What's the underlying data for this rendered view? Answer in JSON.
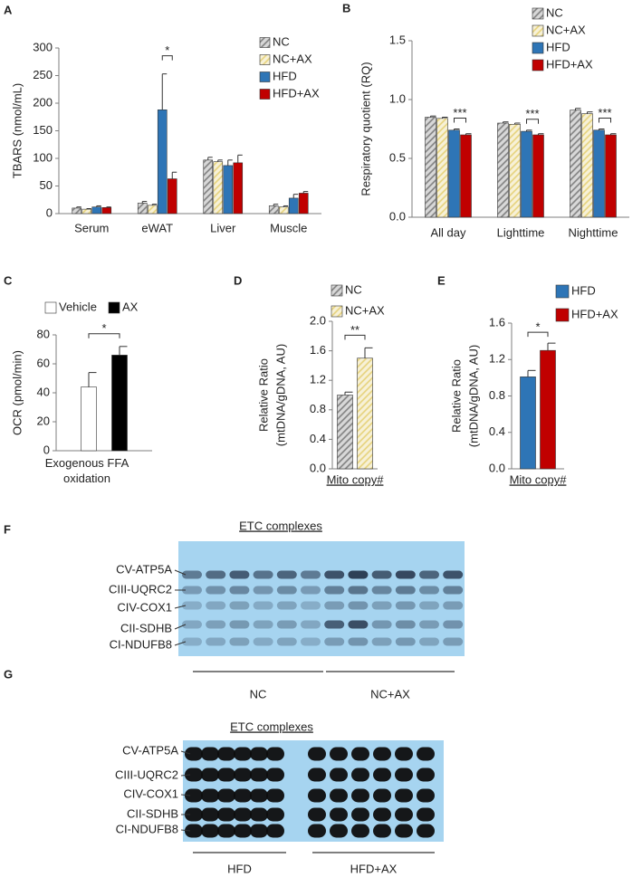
{
  "chart_data": [
    {
      "panel": "A",
      "type": "bar",
      "ylabel": "TBARS (nmol/mL)",
      "categories": [
        "Serum",
        "eWAT",
        "Liver",
        "Muscle"
      ],
      "series": [
        {
          "name": "NC",
          "color": "#7f7f7f",
          "hatch": true,
          "values": [
            10,
            19,
            97,
            14
          ],
          "errors": [
            2,
            3,
            5,
            3
          ]
        },
        {
          "name": "NC+AX",
          "color": "#e6d27a",
          "hatch": true,
          "values": [
            8,
            15,
            94,
            12
          ],
          "errors": [
            1,
            2,
            3,
            2
          ]
        },
        {
          "name": "HFD",
          "color": "#2e75b6",
          "values": [
            12,
            188,
            87,
            28
          ],
          "errors": [
            2,
            65,
            10,
            7
          ]
        },
        {
          "name": "HFD+AX",
          "color": "#c00000",
          "values": [
            11,
            63,
            92,
            37
          ],
          "errors": [
            1,
            12,
            14,
            3
          ]
        }
      ],
      "ylim": [
        0,
        300
      ],
      "yticks": [
        0,
        50,
        100,
        150,
        200,
        250,
        300
      ],
      "annotations": [
        "*"
      ]
    },
    {
      "panel": "B",
      "type": "bar",
      "ylabel": "Respiratory quotient (RQ)",
      "categories": [
        "All day",
        "Lighttime",
        "Nighttime"
      ],
      "series": [
        {
          "name": "NC",
          "color": "#7f7f7f",
          "hatch": true,
          "values": [
            0.85,
            0.8,
            0.91
          ],
          "errors": [
            0.01,
            0.01,
            0.015
          ]
        },
        {
          "name": "NC+AX",
          "color": "#e6d27a",
          "hatch": true,
          "values": [
            0.84,
            0.79,
            0.88
          ],
          "errors": [
            0.01,
            0.01,
            0.015
          ]
        },
        {
          "name": "HFD",
          "color": "#2e75b6",
          "values": [
            0.74,
            0.73,
            0.74
          ],
          "errors": [
            0.01,
            0.01,
            0.01
          ]
        },
        {
          "name": "HFD+AX",
          "color": "#c00000",
          "values": [
            0.7,
            0.7,
            0.7
          ],
          "errors": [
            0.01,
            0.01,
            0.01
          ]
        }
      ],
      "ylim": [
        0,
        1.5
      ],
      "yticks": [
        {
          "value": 0,
          "label": "0.0"
        },
        {
          "value": 0.5,
          "label": "0.5"
        },
        {
          "value": 1,
          "label": "1.0"
        },
        {
          "value": 1.5,
          "label": "1.5"
        }
      ],
      "annotations": [
        "***",
        "***",
        "***"
      ]
    },
    {
      "panel": "C",
      "type": "bar",
      "ylabel": "OCR (pmol/min)",
      "categories": [
        "Exogenous FFA oxidation"
      ],
      "series": [
        {
          "name": "Vehicle",
          "color": "#ffffff",
          "values": [
            44
          ],
          "errors": [
            10
          ]
        },
        {
          "name": "AX",
          "color": "#000000",
          "values": [
            66
          ],
          "errors": [
            6
          ]
        }
      ],
      "ylim": [
        0,
        80
      ],
      "yticks": [
        0,
        20,
        40,
        60,
        80
      ],
      "annotations": [
        "*"
      ]
    },
    {
      "panel": "D",
      "type": "bar",
      "ylabel": [
        "Relative Ratio",
        "(mtDNA/gDNA, AU)"
      ],
      "categories": [
        "Mito copy#"
      ],
      "series": [
        {
          "name": "NC",
          "color": "#7f7f7f",
          "hatch": true,
          "values": [
            1.0
          ],
          "errors": [
            0.04
          ]
        },
        {
          "name": "NC+AX",
          "color": "#e6d27a",
          "hatch": true,
          "values": [
            1.5
          ],
          "errors": [
            0.14
          ]
        }
      ],
      "ylim": [
        0,
        2
      ],
      "yticks": [
        {
          "value": 0,
          "label": "0.0"
        },
        {
          "value": 0.4,
          "label": "0.4"
        },
        {
          "value": 0.8,
          "label": "0.8"
        },
        {
          "value": 1.2,
          "label": "1.2"
        },
        {
          "value": 1.6,
          "label": "1.6"
        },
        {
          "value": 2,
          "label": "2.0"
        }
      ],
      "annotations": [
        "**"
      ]
    },
    {
      "panel": "E",
      "type": "bar",
      "ylabel": [
        "Relative Ratio",
        "(mtDNA/gDNA, AU)"
      ],
      "categories": [
        "Mito copy#"
      ],
      "series": [
        {
          "name": "HFD",
          "color": "#2e75b6",
          "values": [
            1.01
          ],
          "errors": [
            0.07
          ]
        },
        {
          "name": "HFD+AX",
          "color": "#c00000",
          "values": [
            1.3
          ],
          "errors": [
            0.08
          ]
        }
      ],
      "ylim": [
        0,
        1.6
      ],
      "yticks": [
        {
          "value": 0,
          "label": "0.0"
        },
        {
          "value": 0.4,
          "label": "0.4"
        },
        {
          "value": 0.8,
          "label": "0.8"
        },
        {
          "value": 1.2,
          "label": "1.2"
        },
        {
          "value": 1.6,
          "label": "1.6"
        }
      ],
      "annotations": [
        "*"
      ]
    }
  ],
  "blots": [
    {
      "panel": "F",
      "title": "ETC complexes",
      "bands": [
        "CV-ATP5A",
        "CIII-UQRC2",
        "CIV-COX1",
        "CII-SDHB",
        "CI-NDUFB8"
      ],
      "groups": [
        "NC",
        "NC+AX"
      ]
    },
    {
      "panel": "G",
      "title": "ETC complexes",
      "bands": [
        "CV-ATP5A",
        "CIII-UQRC2",
        "CIV-COX1",
        "CII-SDHB",
        "CI-NDUFB8"
      ],
      "groups": [
        "HFD",
        "HFD+AX"
      ]
    }
  ]
}
